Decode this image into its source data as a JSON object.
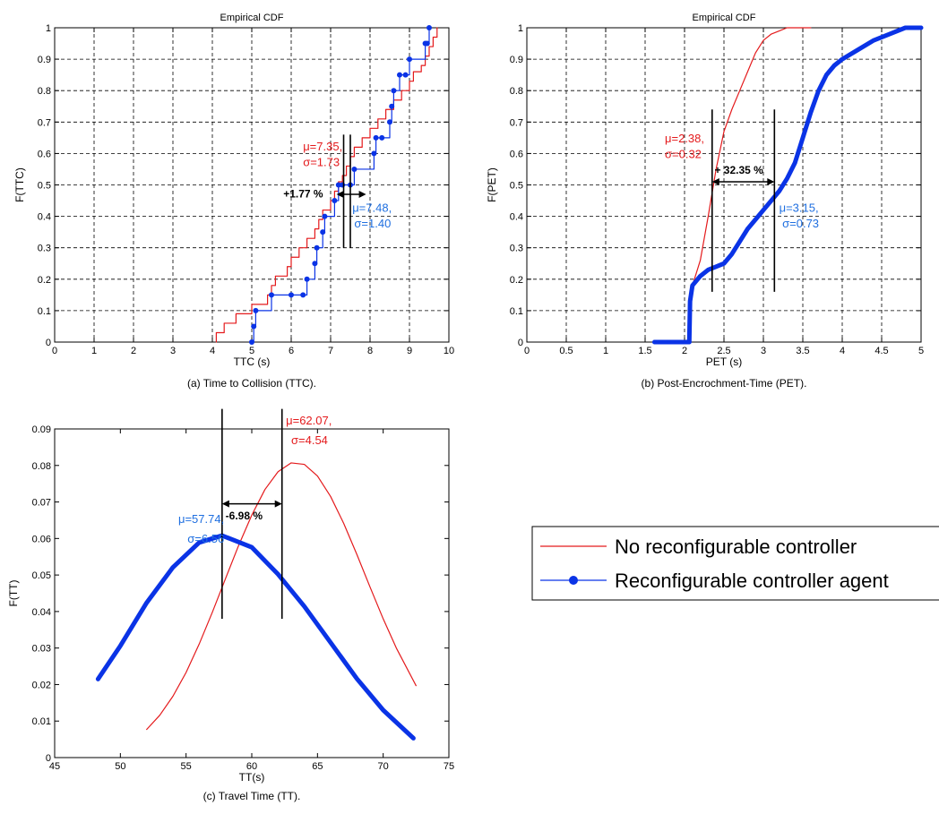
{
  "colors": {
    "red": "#e41a1c",
    "blue": "#0a33e6",
    "annot_blue": "#1f6fe0",
    "black": "#000000"
  },
  "legend": {
    "items": [
      {
        "label": "No reconfigurable controller",
        "color": "#e41a1c",
        "marker": "none"
      },
      {
        "label": "Reconfigurable controller agent",
        "color": "#0a33e6",
        "marker": "dot"
      }
    ]
  },
  "chart_data": [
    {
      "id": "a",
      "type": "line",
      "title": "Empirical CDF",
      "caption": "(a) Time to Collision (TTC).",
      "xlabel": "TTC (s)",
      "ylabel": "F(TTC)",
      "xlim": [
        0,
        10
      ],
      "ylim": [
        0,
        1
      ],
      "xticks": [
        "0",
        "1",
        "2",
        "3",
        "4",
        "5",
        "6",
        "7",
        "8",
        "9",
        "10"
      ],
      "yticks": [
        "0",
        "0.1",
        "0.2",
        "0.3",
        "0.4",
        "0.5",
        "0.6",
        "0.7",
        "0.8",
        "0.9",
        "1"
      ],
      "grid": true,
      "step": true,
      "series": [
        {
          "name": "No reconfigurable controller",
          "x": [
            4.1,
            4.3,
            4.6,
            5.0,
            5.4,
            5.5,
            5.6,
            5.9,
            6.0,
            6.2,
            6.4,
            6.6,
            6.7,
            6.8,
            7.0,
            7.1,
            7.2,
            7.3,
            7.4,
            7.5,
            7.6,
            7.8,
            8.0,
            8.2,
            8.4,
            8.6,
            8.8,
            9.0,
            9.1,
            9.3,
            9.4,
            9.5,
            9.6,
            9.7
          ],
          "y": [
            0.03,
            0.06,
            0.09,
            0.12,
            0.15,
            0.18,
            0.21,
            0.24,
            0.27,
            0.3,
            0.33,
            0.36,
            0.39,
            0.42,
            0.45,
            0.48,
            0.51,
            0.53,
            0.56,
            0.59,
            0.62,
            0.65,
            0.68,
            0.71,
            0.74,
            0.77,
            0.8,
            0.83,
            0.86,
            0.88,
            0.91,
            0.94,
            0.97,
            1.0
          ]
        },
        {
          "name": "Reconfigurable controller agent",
          "x": [
            5.0,
            5.05,
            5.1,
            5.5,
            6.0,
            6.3,
            6.4,
            6.6,
            6.65,
            6.8,
            6.85,
            7.1,
            7.2,
            7.3,
            7.5,
            7.6,
            8.1,
            8.15,
            8.3,
            8.5,
            8.55,
            8.6,
            8.75,
            8.9,
            9.0,
            9.4,
            9.45,
            9.5
          ],
          "y": [
            0.0,
            0.05,
            0.1,
            0.15,
            0.15,
            0.15,
            0.2,
            0.25,
            0.3,
            0.35,
            0.4,
            0.45,
            0.5,
            0.5,
            0.5,
            0.55,
            0.6,
            0.65,
            0.65,
            0.7,
            0.75,
            0.8,
            0.85,
            0.85,
            0.9,
            0.95,
            0.95,
            1.0
          ]
        }
      ],
      "annotations": [
        {
          "text": "μ=7.35,",
          "x": 6.3,
          "y": 0.61,
          "color": "red",
          "anchor": "start"
        },
        {
          "text": "σ=1.73",
          "x": 6.3,
          "y": 0.56,
          "color": "red",
          "anchor": "start"
        },
        {
          "text": "μ=7.48,",
          "x": 7.55,
          "y": 0.415,
          "color": "annot_blue",
          "anchor": "start"
        },
        {
          "text": "σ=1.40",
          "x": 7.6,
          "y": 0.365,
          "color": "annot_blue",
          "anchor": "start"
        },
        {
          "text": "+1.77 %",
          "x": 5.8,
          "y": 0.46,
          "color": "black",
          "anchor": "start"
        }
      ],
      "vlines": [
        {
          "x": 7.33,
          "y0": 0.3,
          "y1": 0.66
        },
        {
          "x": 7.5,
          "y0": 0.3,
          "y1": 0.66
        }
      ],
      "arrow": {
        "x0": 7.15,
        "x1": 7.9,
        "y": 0.47
      }
    },
    {
      "id": "b",
      "type": "line",
      "title": "Empirical CDF",
      "caption": "(b) Post-Encrochment-Time (PET).",
      "xlabel": "PET (s)",
      "ylabel": "F(PET)",
      "xlim": [
        0,
        5
      ],
      "ylim": [
        0,
        1
      ],
      "xticks": [
        "0",
        "0.5",
        "1",
        "1.5",
        "2",
        "2.5",
        "3",
        "3.5",
        "4",
        "4.5",
        "5"
      ],
      "yticks": [
        "0",
        "0.1",
        "0.2",
        "0.3",
        "0.4",
        "0.5",
        "0.6",
        "0.7",
        "0.8",
        "0.9",
        "1"
      ],
      "grid": true,
      "step": false,
      "series": [
        {
          "name": "No reconfigurable controller",
          "x": [
            2.1,
            2.15,
            2.2,
            2.3,
            2.4,
            2.5,
            2.6,
            2.7,
            2.8,
            2.9,
            3.0,
            3.1,
            3.2,
            3.3,
            3.4,
            3.5,
            3.6
          ],
          "y": [
            0.18,
            0.22,
            0.26,
            0.4,
            0.55,
            0.67,
            0.74,
            0.8,
            0.86,
            0.92,
            0.96,
            0.98,
            0.99,
            1.0,
            1.0,
            1.0,
            1.0
          ]
        },
        {
          "name": "Reconfigurable controller agent",
          "x": [
            1.62,
            1.7,
            1.8,
            1.9,
            2.0,
            2.06,
            2.07,
            2.1,
            2.2,
            2.3,
            2.4,
            2.5,
            2.6,
            2.7,
            2.8,
            2.9,
            3.0,
            3.1,
            3.2,
            3.3,
            3.4,
            3.5,
            3.6,
            3.7,
            3.8,
            3.9,
            4.0,
            4.2,
            4.4,
            4.6,
            4.8,
            5.0
          ],
          "y": [
            0.0,
            0.0,
            0.0,
            0.0,
            0.0,
            0.0,
            0.13,
            0.18,
            0.21,
            0.23,
            0.24,
            0.25,
            0.28,
            0.32,
            0.36,
            0.39,
            0.42,
            0.45,
            0.48,
            0.52,
            0.57,
            0.65,
            0.73,
            0.8,
            0.85,
            0.88,
            0.9,
            0.93,
            0.96,
            0.98,
            1.0,
            1.0
          ]
        }
      ],
      "annotations": [
        {
          "text": "μ=2.38,",
          "x": 1.75,
          "y": 0.635,
          "color": "red",
          "anchor": "start"
        },
        {
          "text": "σ=0.32",
          "x": 1.75,
          "y": 0.585,
          "color": "red",
          "anchor": "start"
        },
        {
          "text": "μ=3.15,",
          "x": 3.2,
          "y": 0.415,
          "color": "annot_blue",
          "anchor": "start"
        },
        {
          "text": "σ=0.73",
          "x": 3.24,
          "y": 0.365,
          "color": "annot_blue",
          "anchor": "start"
        },
        {
          "text": "+ 32.35 %",
          "x": 2.38,
          "y": 0.535,
          "color": "black",
          "anchor": "start"
        }
      ],
      "vlines": [
        {
          "x": 2.35,
          "y0": 0.16,
          "y1": 0.74
        },
        {
          "x": 3.14,
          "y0": 0.16,
          "y1": 0.74
        }
      ],
      "arrow": {
        "x0": 2.35,
        "x1": 3.14,
        "y": 0.51
      }
    },
    {
      "id": "c",
      "type": "line",
      "title": "",
      "caption": "(c) Travel Time (TT).",
      "xlabel": "TT(s)",
      "ylabel": "F(TT)",
      "xlim": [
        45,
        75
      ],
      "ylim": [
        0,
        0.09
      ],
      "xticks": [
        "45",
        "50",
        "55",
        "60",
        "65",
        "70",
        "75"
      ],
      "yticks": [
        "0",
        "0.01",
        "0.02",
        "0.03",
        "0.04",
        "0.05",
        "0.06",
        "0.07",
        "0.08",
        "0.09"
      ],
      "grid": false,
      "step": false,
      "series": [
        {
          "name": "No reconfigurable controller",
          "x": [
            52,
            53,
            54,
            55,
            56,
            57,
            58,
            59,
            60,
            61,
            62,
            63,
            64,
            65,
            66,
            67,
            68,
            69,
            70,
            71,
            72.5
          ],
          "y": [
            0.0077,
            0.0116,
            0.0168,
            0.0233,
            0.0311,
            0.0398,
            0.049,
            0.0581,
            0.0664,
            0.0734,
            0.0783,
            0.0807,
            0.0803,
            0.0771,
            0.0715,
            0.0641,
            0.0556,
            0.0467,
            0.038,
            0.03,
            0.0197
          ]
        },
        {
          "name": "Reconfigurable controller agent",
          "x": [
            48.3,
            50,
            52,
            54,
            56,
            57.74,
            60,
            62,
            64,
            66,
            68,
            70,
            72.3
          ],
          "y": [
            0.0215,
            0.0306,
            0.0424,
            0.0521,
            0.0589,
            0.0608,
            0.0576,
            0.0502,
            0.0414,
            0.0315,
            0.0216,
            0.013,
            0.0053
          ]
        }
      ],
      "annotations": [
        {
          "text": "μ=62.07,",
          "x": 62.6,
          "y": 0.0912,
          "color": "red",
          "anchor": "start"
        },
        {
          "text": "σ=4.54",
          "x": 63.0,
          "y": 0.0858,
          "color": "red",
          "anchor": "start"
        },
        {
          "text": "μ=57.74,",
          "x": 57.9,
          "y": 0.0642,
          "color": "annot_blue",
          "anchor": "end"
        },
        {
          "text": "σ=6.56",
          "x": 57.9,
          "y": 0.0588,
          "color": "annot_blue",
          "anchor": "end"
        },
        {
          "text": "-6.98 %",
          "x": 58.0,
          "y": 0.0652,
          "color": "black",
          "anchor": "start"
        }
      ],
      "vlines": [
        {
          "x": 57.74,
          "y0": 0.038,
          "y1": 0.0955
        },
        {
          "x": 62.3,
          "y0": 0.038,
          "y1": 0.0955
        }
      ],
      "arrow": {
        "x0": 57.74,
        "x1": 62.3,
        "y": 0.0695
      }
    }
  ]
}
